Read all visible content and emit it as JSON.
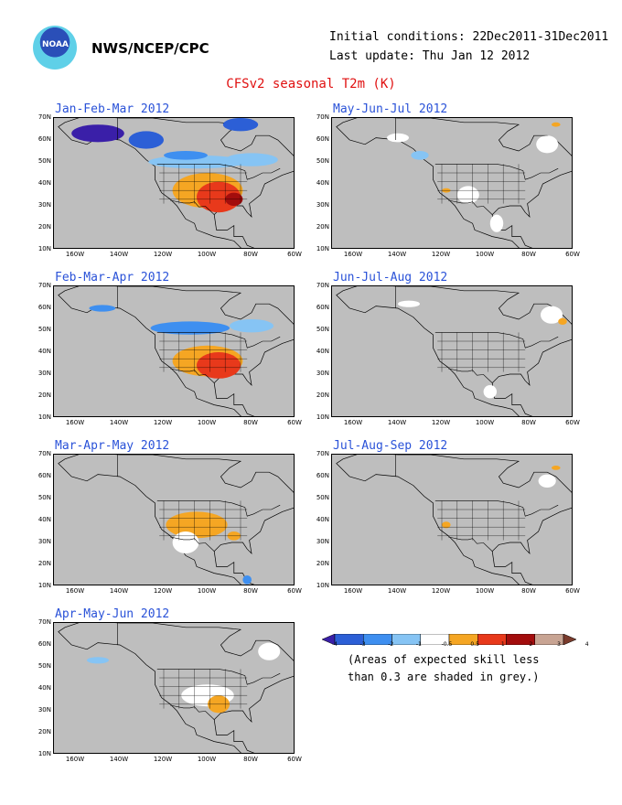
{
  "header": {
    "logo_text": "NOAA",
    "agency": "NWS/NCEP/CPC",
    "initial_conditions": "Initial conditions: 22Dec2011-31Dec2011",
    "last_update": "Last update: Thu Jan 12 2012"
  },
  "chart_data": {
    "type": "heatmap",
    "title": "CFSv2 seasonal T2m (K)",
    "grid": true,
    "ylim": [
      10,
      70
    ],
    "xlim": [
      -170,
      -60
    ],
    "ytick_labels": [
      "70N",
      "60N",
      "50N",
      "40N",
      "30N",
      "20N",
      "10N"
    ],
    "xtick_labels": [
      "160W",
      "140W",
      "120W",
      "100W",
      "80W",
      "60W"
    ],
    "panels": [
      {
        "title": "Jan-Feb-Mar 2012",
        "key": "jfm"
      },
      {
        "title": "May-Jun-Jul 2012",
        "key": "mjj"
      },
      {
        "title": "Feb-Mar-Apr 2012",
        "key": "fma"
      },
      {
        "title": "Jun-Jul-Aug 2012",
        "key": "jja"
      },
      {
        "title": "Mar-Apr-May 2012",
        "key": "mam"
      },
      {
        "title": "Jul-Aug-Sep 2012",
        "key": "jas"
      },
      {
        "title": "Apr-May-Jun 2012",
        "key": "amj"
      }
    ],
    "colorbar": {
      "ticks": [
        "-4",
        "-3",
        "-2",
        "-1",
        "-0.5",
        "0.5",
        "1",
        "2",
        "3",
        "4"
      ],
      "colors": [
        "#3a1fa8",
        "#2c5fd6",
        "#3e8ff0",
        "#86c4f4",
        "#ffffff",
        "#f5a623",
        "#e8391b",
        "#a30d0d",
        "#c8a493",
        "#7a3b2c"
      ],
      "note_line1": "(Areas of expected skill less",
      "note_line2": "than 0.3 are shaded in grey.)"
    },
    "blobs": {
      "jfm": [
        {
          "x": -150,
          "y": 63,
          "rx": 12,
          "ry": 4,
          "c": "#3a1fa8"
        },
        {
          "x": -128,
          "y": 60,
          "rx": 8,
          "ry": 4,
          "c": "#2c5fd6"
        },
        {
          "x": -85,
          "y": 67,
          "rx": 8,
          "ry": 3,
          "c": "#2c5fd6"
        },
        {
          "x": -105,
          "y": 50,
          "rx": 22,
          "ry": 3,
          "c": "#86c4f4"
        },
        {
          "x": -110,
          "y": 53,
          "rx": 10,
          "ry": 2,
          "c": "#3e8ff0"
        },
        {
          "x": -80,
          "y": 51,
          "rx": 12,
          "ry": 3,
          "c": "#86c4f4"
        },
        {
          "x": -100,
          "y": 37,
          "rx": 16,
          "ry": 8,
          "c": "#f5a623"
        },
        {
          "x": -95,
          "y": 34,
          "rx": 10,
          "ry": 7,
          "c": "#e8391b"
        },
        {
          "x": -88,
          "y": 33,
          "rx": 4,
          "ry": 3,
          "c": "#a30d0d"
        }
      ],
      "mjj": [
        {
          "x": -140,
          "y": 61,
          "rx": 5,
          "ry": 2,
          "c": "#ffffff"
        },
        {
          "x": -130,
          "y": 53,
          "rx": 4,
          "ry": 2,
          "c": "#86c4f4"
        },
        {
          "x": -72,
          "y": 58,
          "rx": 5,
          "ry": 4,
          "c": "#ffffff"
        },
        {
          "x": -108,
          "y": 35,
          "rx": 5,
          "ry": 4,
          "c": "#ffffff"
        },
        {
          "x": -118,
          "y": 37,
          "rx": 2,
          "ry": 1,
          "c": "#f5a623"
        },
        {
          "x": -95,
          "y": 22,
          "rx": 3,
          "ry": 4,
          "c": "#ffffff"
        },
        {
          "x": -68,
          "y": 67,
          "rx": 2,
          "ry": 1,
          "c": "#f5a623"
        }
      ],
      "fma": [
        {
          "x": -148,
          "y": 60,
          "rx": 6,
          "ry": 1.5,
          "c": "#3e8ff0"
        },
        {
          "x": -108,
          "y": 51,
          "rx": 18,
          "ry": 3,
          "c": "#3e8ff0"
        },
        {
          "x": -80,
          "y": 52,
          "rx": 10,
          "ry": 3,
          "c": "#86c4f4"
        },
        {
          "x": -100,
          "y": 36,
          "rx": 16,
          "ry": 7,
          "c": "#f5a623"
        },
        {
          "x": -95,
          "y": 34,
          "rx": 10,
          "ry": 6,
          "c": "#e8391b"
        }
      ],
      "jja": [
        {
          "x": -135,
          "y": 62,
          "rx": 5,
          "ry": 1.5,
          "c": "#ffffff"
        },
        {
          "x": -70,
          "y": 57,
          "rx": 5,
          "ry": 4,
          "c": "#ffffff"
        },
        {
          "x": -65,
          "y": 54,
          "rx": 2,
          "ry": 1.5,
          "c": "#f5a623"
        },
        {
          "x": -98,
          "y": 22,
          "rx": 3,
          "ry": 3,
          "c": "#ffffff"
        }
      ],
      "mam": [
        {
          "x": -105,
          "y": 38,
          "rx": 14,
          "ry": 6,
          "c": "#f5a623"
        },
        {
          "x": -110,
          "y": 30,
          "rx": 6,
          "ry": 5,
          "c": "#ffffff"
        },
        {
          "x": -88,
          "y": 33,
          "rx": 3,
          "ry": 2,
          "c": "#f5a623"
        },
        {
          "x": -82,
          "y": 13,
          "rx": 2,
          "ry": 2,
          "c": "#3e8ff0"
        }
      ],
      "jas": [
        {
          "x": -72,
          "y": 58,
          "rx": 4,
          "ry": 3,
          "c": "#ffffff"
        },
        {
          "x": -68,
          "y": 64,
          "rx": 2,
          "ry": 1,
          "c": "#f5a623"
        },
        {
          "x": -118,
          "y": 38,
          "rx": 2,
          "ry": 1.5,
          "c": "#f5a623"
        }
      ],
      "amj": [
        {
          "x": -150,
          "y": 53,
          "rx": 5,
          "ry": 1.5,
          "c": "#86c4f4"
        },
        {
          "x": -100,
          "y": 37,
          "rx": 12,
          "ry": 5,
          "c": "#ffffff"
        },
        {
          "x": -95,
          "y": 33,
          "rx": 5,
          "ry": 4,
          "c": "#f5a623"
        },
        {
          "x": -72,
          "y": 57,
          "rx": 5,
          "ry": 4,
          "c": "#ffffff"
        }
      ]
    }
  }
}
